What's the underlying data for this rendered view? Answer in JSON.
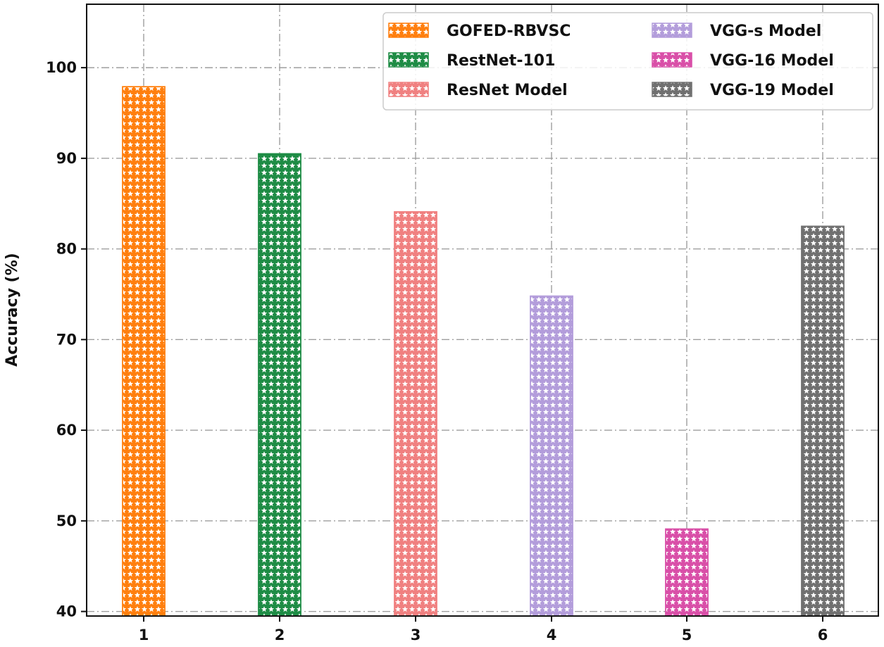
{
  "chart_data": {
    "type": "bar",
    "title": "",
    "xlabel": "",
    "ylabel": "Accuracy (%)",
    "categories": [
      "1",
      "2",
      "3",
      "4",
      "5",
      "6"
    ],
    "ylim": [
      39.5,
      107
    ],
    "yticks": [
      40,
      50,
      60,
      70,
      80,
      90,
      100
    ],
    "grid": true,
    "legend_position": "top-right",
    "legend_columns": 2,
    "fill_pattern": "stars",
    "series": [
      {
        "name": "GOFED-RBVSC",
        "x": "1",
        "value": 97.9,
        "color": "#ff7f0e"
      },
      {
        "name": "RestNet-101",
        "x": "2",
        "value": 90.5,
        "color": "#1e8c45"
      },
      {
        "name": "ResNet Model",
        "x": "3",
        "value": 84.1,
        "color": "#f08080"
      },
      {
        "name": "VGG-s Model",
        "x": "4",
        "value": 74.8,
        "color": "#b39ddb"
      },
      {
        "name": "VGG-16 Model",
        "x": "5",
        "value": 49.1,
        "color": "#d94fa8"
      },
      {
        "name": "VGG-19 Model",
        "x": "6",
        "value": 82.5,
        "color": "#707070"
      }
    ]
  }
}
